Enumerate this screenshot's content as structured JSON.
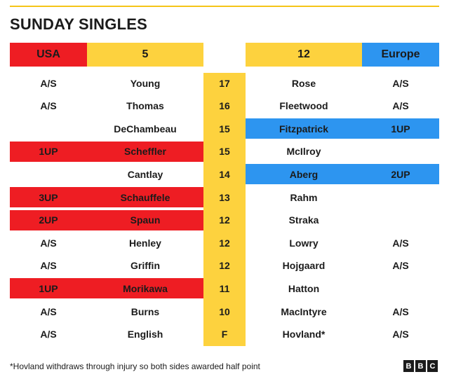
{
  "title": "SUNDAY SINGLES",
  "header": {
    "usa_label": "USA",
    "usa_score": "5",
    "europe_score": "12",
    "europe_label": "Europe"
  },
  "colors": {
    "usa": "#ee1d23",
    "europe": "#2d95f0",
    "neutral": "#fdd23e"
  },
  "rows": [
    {
      "usa_result": "A/S",
      "usa_player": "Young",
      "hole": "17",
      "eur_player": "Rose",
      "eur_result": "A/S",
      "winner": "none"
    },
    {
      "usa_result": "A/S",
      "usa_player": "Thomas",
      "hole": "16",
      "eur_player": "Fleetwood",
      "eur_result": "A/S",
      "winner": "none"
    },
    {
      "usa_result": "",
      "usa_player": "DeChambeau",
      "hole": "15",
      "eur_player": "Fitzpatrick",
      "eur_result": "1UP",
      "winner": "europe"
    },
    {
      "usa_result": "1UP",
      "usa_player": "Scheffler",
      "hole": "15",
      "eur_player": "McIlroy",
      "eur_result": "",
      "winner": "usa"
    },
    {
      "usa_result": "",
      "usa_player": "Cantlay",
      "hole": "14",
      "eur_player": "Aberg",
      "eur_result": "2UP",
      "winner": "europe"
    },
    {
      "usa_result": "3UP",
      "usa_player": "Schauffele",
      "hole": "13",
      "eur_player": "Rahm",
      "eur_result": "",
      "winner": "usa"
    },
    {
      "usa_result": "2UP",
      "usa_player": "Spaun",
      "hole": "12",
      "eur_player": "Straka",
      "eur_result": "",
      "winner": "usa"
    },
    {
      "usa_result": "A/S",
      "usa_player": "Henley",
      "hole": "12",
      "eur_player": "Lowry",
      "eur_result": "A/S",
      "winner": "none"
    },
    {
      "usa_result": "A/S",
      "usa_player": "Griffin",
      "hole": "12",
      "eur_player": "Hojgaard",
      "eur_result": "A/S",
      "winner": "none"
    },
    {
      "usa_result": "1UP",
      "usa_player": "Morikawa",
      "hole": "11",
      "eur_player": "Hatton",
      "eur_result": "",
      "winner": "usa"
    },
    {
      "usa_result": "A/S",
      "usa_player": "Burns",
      "hole": "10",
      "eur_player": "MacIntyre",
      "eur_result": "A/S",
      "winner": "none"
    },
    {
      "usa_result": "A/S",
      "usa_player": "English",
      "hole": "F",
      "eur_player": "Hovland*",
      "eur_result": "A/S",
      "winner": "none"
    }
  ],
  "footnote": "*Hovland withdraws through injury so both sides awarded half point",
  "logo": [
    "B",
    "B",
    "C"
  ]
}
